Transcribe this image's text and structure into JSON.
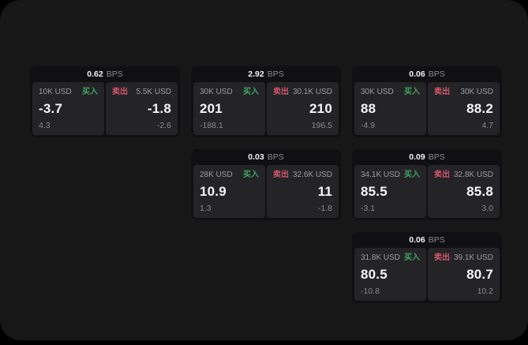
{
  "window": {
    "outside_bg": "#000000",
    "bg": "#171717"
  },
  "colors": {
    "card_bg": "#101012",
    "panel_bg": "#242427",
    "text_primary": "#f5f5f5",
    "text_secondary": "#8a8a8a",
    "buy_green": "#3fa463",
    "sell_red": "#d4566a"
  },
  "labels": {
    "buy": "买入",
    "sell": "卖出",
    "bps": "BPS"
  },
  "cards": [
    {
      "row": 1,
      "col": 1,
      "bps": "0.62",
      "buy": {
        "amount": "10K USD",
        "value": "-3.7",
        "sub": "4.3"
      },
      "sell": {
        "amount": "5.5K USD",
        "value": "-1.8",
        "sub": "-2.6"
      }
    },
    {
      "row": 1,
      "col": 2,
      "bps": "2.92",
      "buy": {
        "amount": "30K USD",
        "value": "201",
        "sub": "-188.1"
      },
      "sell": {
        "amount": "30.1K USD",
        "value": "210",
        "sub": "196.5"
      }
    },
    {
      "row": 1,
      "col": 3,
      "bps": "0.06",
      "buy": {
        "amount": "30K USD",
        "value": "88",
        "sub": "-4.9"
      },
      "sell": {
        "amount": "30K USD",
        "value": "88.2",
        "sub": "4.7"
      }
    },
    {
      "row": 2,
      "col": 2,
      "bps": "0.03",
      "buy": {
        "amount": "28K USD",
        "value": "10.9",
        "sub": "1.3"
      },
      "sell": {
        "amount": "32.6K USD",
        "value": "11",
        "sub": "-1.8"
      }
    },
    {
      "row": 2,
      "col": 3,
      "bps": "0.09",
      "buy": {
        "amount": "34.1K USD",
        "value": "85.5",
        "sub": "-3.1"
      },
      "sell": {
        "amount": "32.8K USD",
        "value": "85.8",
        "sub": "3.0"
      }
    },
    {
      "row": 3,
      "col": 3,
      "bps": "0.06",
      "buy": {
        "amount": "31.8K USD",
        "value": "80.5",
        "sub": "-10.8"
      },
      "sell": {
        "amount": "39.1K USD",
        "value": "80.7",
        "sub": "10.2"
      }
    }
  ]
}
